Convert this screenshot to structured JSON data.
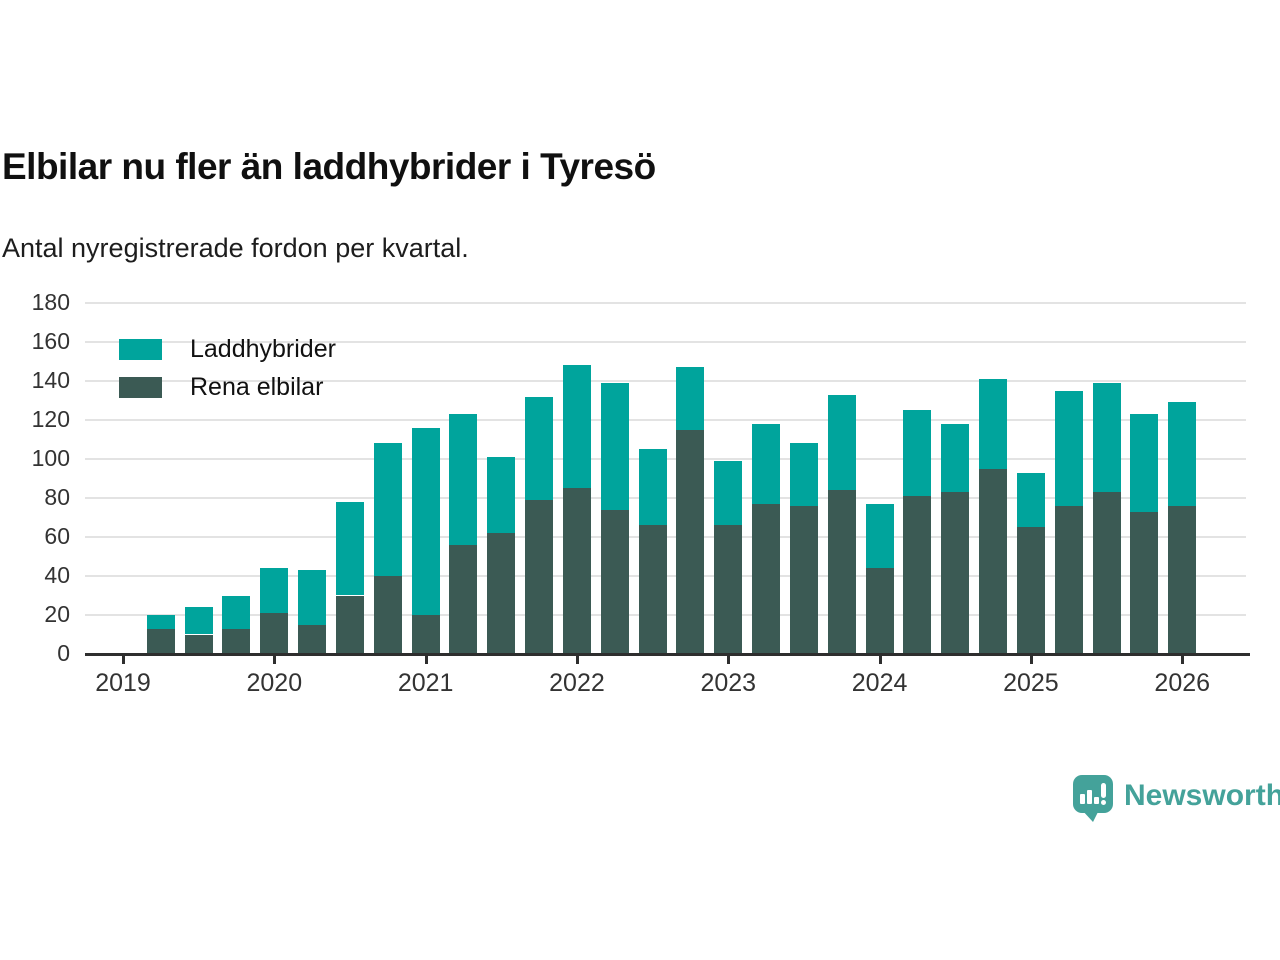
{
  "header": {
    "title": "Elbilar nu fler än laddhybrider i Tyresö",
    "subtitle": "Antal nyregistrerade fordon per kvartal."
  },
  "chart_data": {
    "type": "bar",
    "stacked": true,
    "title": "Elbilar nu fler än laddhybrider i Tyresö",
    "subtitle": "Antal nyregistrerade fordon per kvartal.",
    "categories": [
      "2019 K2",
      "2019 K3",
      "2019 K4",
      "2020 K1",
      "2020 K2",
      "2020 K3",
      "2020 K4",
      "2021 K1",
      "2021 K2",
      "2021 K3",
      "2021 K4",
      "2022 K1",
      "2022 K2",
      "2022 K3",
      "2022 K4",
      "2023 K1",
      "2023 K2",
      "2023 K3",
      "2023 K4",
      "2024 K1",
      "2024 K2",
      "2024 K3",
      "2024 K4",
      "2025 K1",
      "2025 K2",
      "2025 K3",
      "2025 K4",
      "2026 K1"
    ],
    "series": [
      {
        "name": "Laddhybrider",
        "color": "#00a49c",
        "stack_position": "top",
        "values": [
          7,
          14,
          17,
          23,
          28,
          48,
          68,
          96,
          67,
          39,
          53,
          63,
          65,
          39,
          32,
          33,
          41,
          32,
          49,
          33,
          44,
          35,
          46,
          28,
          59,
          56,
          50,
          53
        ]
      },
      {
        "name": "Rena elbilar",
        "color": "#3b5a54",
        "stack_position": "bottom",
        "values": [
          13,
          10,
          13,
          21,
          15,
          30,
          40,
          20,
          56,
          62,
          79,
          85,
          74,
          66,
          115,
          66,
          77,
          76,
          84,
          44,
          81,
          83,
          95,
          65,
          76,
          83,
          73,
          76
        ]
      }
    ],
    "totals": [
      20,
      24,
      30,
      44,
      43,
      78,
      108,
      116,
      123,
      101,
      132,
      148,
      139,
      105,
      147,
      99,
      118,
      108,
      133,
      77,
      125,
      118,
      141,
      93,
      135,
      139,
      123,
      129
    ],
    "x_tick_labels": [
      "2019",
      "2020",
      "2021",
      "2022",
      "2023",
      "2024",
      "2025",
      "2026"
    ],
    "y_ticks": [
      0,
      20,
      40,
      60,
      80,
      100,
      120,
      140,
      160,
      180
    ],
    "ylim": [
      0,
      180
    ],
    "grid": "horizontal",
    "legend_position": "top-left"
  },
  "legend": {
    "items": [
      {
        "label": "Laddhybrider",
        "color": "#00a49c"
      },
      {
        "label": "Rena elbilar",
        "color": "#3b5a54"
      }
    ]
  },
  "footer": {
    "brand": "Newsworthy",
    "brand_color": "#44a29a"
  },
  "colors": {
    "laddhybrider": "#00a49c",
    "rena_elbilar": "#3b5a54",
    "gridline": "#e3e3e3",
    "axis": "#2e2e2e",
    "background": "#ffffff"
  }
}
